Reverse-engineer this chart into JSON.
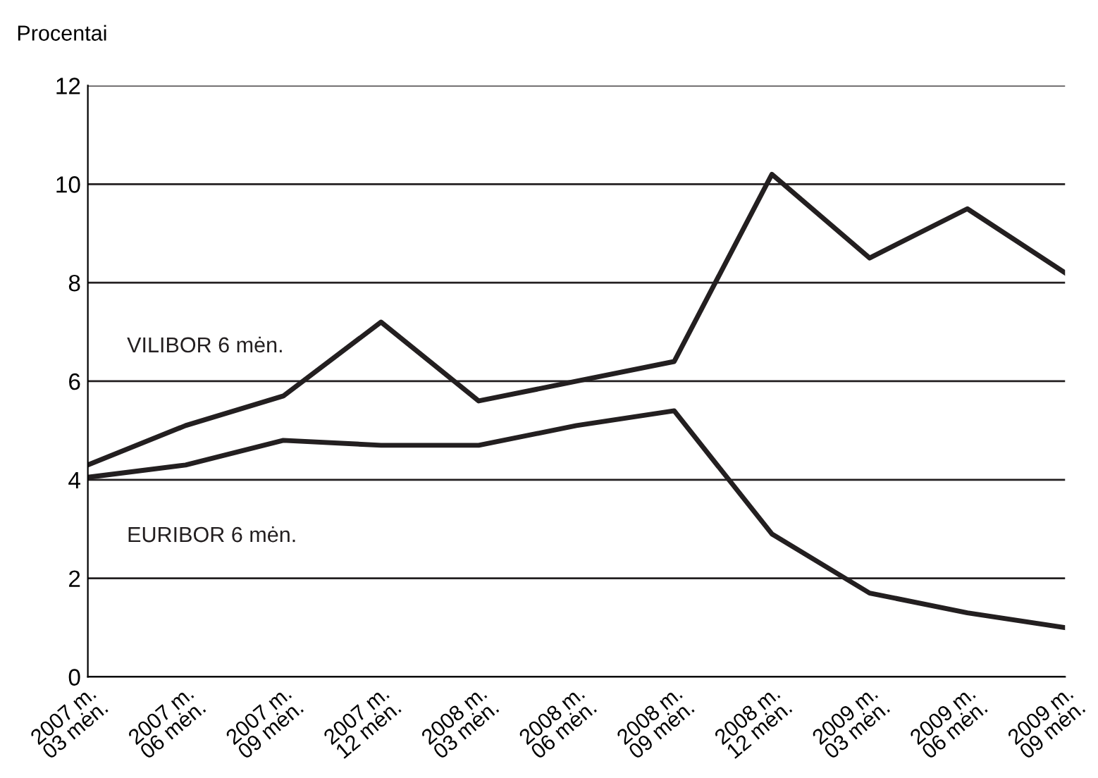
{
  "chart_data": {
    "type": "line",
    "ylabel": "Procentai",
    "categories": [
      "2007 m.\n03 mėn.",
      "2007 m.\n06 mėn.",
      "2007 m.\n09 mėn.",
      "2007 m.\n12 mėn.",
      "2008 m.\n03 mėn.",
      "2008 m.\n06 mėn.",
      "2008 m.\n09 mėn.",
      "2008 m.\n12 mėn.",
      "2009 m.\n03 mėn.",
      "2009 m.\n06 mėn.",
      "2009 m.\n09 mėn."
    ],
    "series": [
      {
        "name": "VILIBOR 6 mėn.",
        "color": "#231f20",
        "values": [
          4.3,
          5.1,
          5.7,
          7.2,
          5.6,
          6.0,
          6.4,
          10.2,
          8.5,
          9.5,
          8.2
        ]
      },
      {
        "name": "EURIBOR 6 mėn.",
        "color": "#231f20",
        "values": [
          4.05,
          4.3,
          4.8,
          4.7,
          4.7,
          5.1,
          5.4,
          2.9,
          1.7,
          1.3,
          1.0
        ]
      }
    ],
    "ylim": [
      0,
      12
    ],
    "yticks": [
      0,
      2,
      4,
      6,
      8,
      10,
      12
    ],
    "grid": "y",
    "legend": false,
    "marker": "none",
    "line_style": "solid"
  }
}
